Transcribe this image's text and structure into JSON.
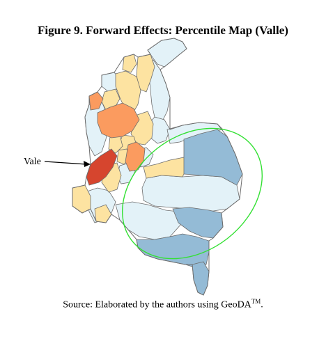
{
  "figure": {
    "title": "Figure 9. Forward Effects: Percentile Map (Valle)",
    "annotation_label": "Vale",
    "caption_text": "Source: Elaborated by the authors using GeoDA",
    "caption_superscript": "TM",
    "caption_end": "."
  },
  "palette": {
    "very_light_blue": "#e3f2f8",
    "light_yellow": "#fde3a1",
    "orange": "#fb9b5f",
    "dark_orange_red": "#d6452e",
    "steel_blue": "#94bbd6",
    "outline": "#6d6d6d",
    "ellipse": "#33e033"
  }
}
